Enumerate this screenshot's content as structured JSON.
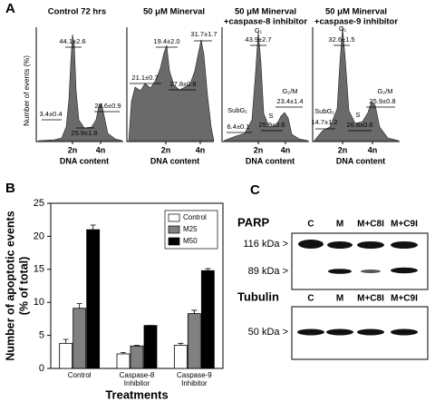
{
  "panel_labels": [
    "A",
    "B",
    "C"
  ],
  "panel_a": {
    "y_label": "Number of events (%)",
    "x_ticks": [
      "2n",
      "4n"
    ],
    "x_label": "DNA content",
    "panels": [
      {
        "title": [
          "Control 72 hrs"
        ],
        "annotations": [
          "44.1±2.6",
          "3.4±0.4",
          "25.9±1.8",
          "26.6±0.9"
        ]
      },
      {
        "title": [
          "50 μM Minerval"
        ],
        "annotations": [
          "19.4±2.0",
          "31.7±1.7",
          "21.1±0.7",
          "27.8±0.8"
        ]
      },
      {
        "title": [
          "50 μM Minerval",
          "+caspase-8 inhibitor"
        ],
        "annotations": [
          "G₁",
          "43.9±2.7",
          "G₂/M",
          "23.4±1.4",
          "SubG₁",
          "6.4±0.1",
          "S",
          "25.9±0.6"
        ]
      },
      {
        "title": [
          "50 μM Minerval",
          "+caspase-9 inhibitor"
        ],
        "annotations": [
          "G₁",
          "32.6±1.5",
          "G₂/M",
          "25.9±0.8",
          "SubG₁",
          "14.7±1.2",
          "S",
          "26.8±0.6"
        ]
      }
    ]
  },
  "chart_data": {
    "type": "bar",
    "categories": [
      [
        "Control"
      ],
      [
        "Caspase-8",
        "Inhibitor"
      ],
      [
        "Caspase-9",
        "Inhibitor"
      ]
    ],
    "series": [
      {
        "name": "Control",
        "color": "#ffffff",
        "values": [
          3.8,
          2.2,
          3.5
        ],
        "errors": [
          0.6,
          0.2,
          0.3
        ]
      },
      {
        "name": "M25",
        "color": "#808080",
        "values": [
          9.1,
          3.4,
          8.3
        ],
        "errors": [
          0.7,
          0.1,
          0.5
        ]
      },
      {
        "name": "M50",
        "color": "#000000",
        "values": [
          21,
          6.5,
          14.8
        ],
        "errors": [
          0.7,
          0,
          0.3
        ]
      }
    ],
    "y_label": [
      "Number of apoptotic events",
      "(% of total)"
    ],
    "x_label": "Treatments",
    "ylim": [
      0,
      25
    ],
    "yticks": [
      0,
      5,
      10,
      15,
      20,
      25
    ],
    "legend": "upper-right"
  },
  "panel_c": {
    "lanes": [
      "C",
      "M",
      "M+C8I",
      "M+C9I"
    ],
    "blots": [
      {
        "name": "PARP",
        "markers": [
          "116 kDa >",
          "89 kDa >"
        ]
      },
      {
        "name": "Tubulin",
        "markers": [
          "50 kDa >"
        ]
      }
    ]
  }
}
